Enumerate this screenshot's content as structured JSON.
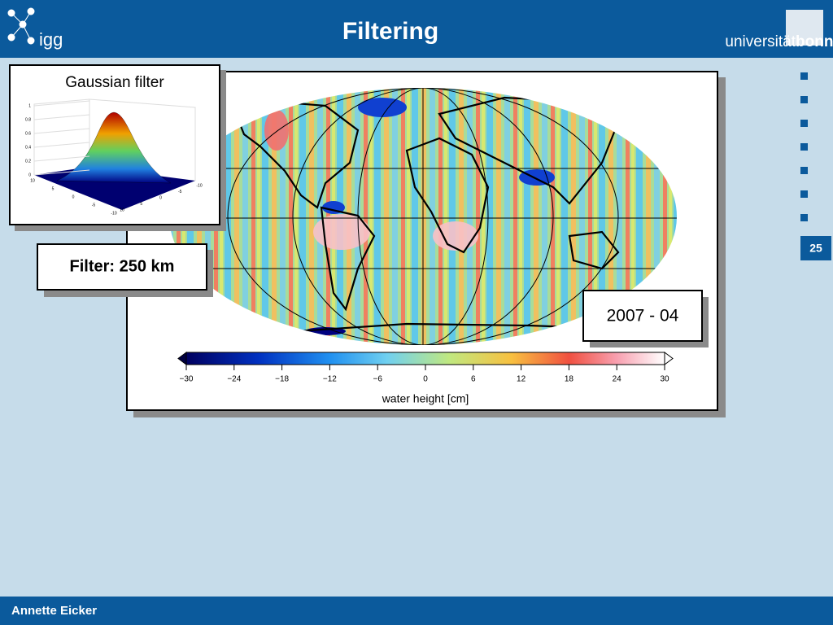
{
  "header": {
    "title": "Filtering",
    "logo_left": "igg",
    "logo_right_light": "universität",
    "logo_right_bold": "bonn"
  },
  "slide_number": "25",
  "footer": {
    "author": "Annette Eicker"
  },
  "gaussian_panel": {
    "title": "Gaussian filter",
    "zticks": [
      0,
      0.2,
      0.4,
      0.6,
      0.8,
      1
    ],
    "xticks": [
      10,
      5,
      0,
      -5,
      -10
    ],
    "yticks": [
      10,
      5,
      0,
      -5,
      -10
    ]
  },
  "filter_label": "Filter: 250 km",
  "date_label": "2007 - 04",
  "colorbar": {
    "label": "water height [cm]",
    "lim": [
      -30,
      30
    ],
    "ticks": [
      {
        "value": -30,
        "label": "−30"
      },
      {
        "value": -24,
        "label": "−24"
      },
      {
        "value": -18,
        "label": "−18"
      },
      {
        "value": -12,
        "label": "−12"
      },
      {
        "value": -6,
        "label": "−6"
      },
      0,
      6,
      12,
      18,
      24,
      30
    ]
  }
}
